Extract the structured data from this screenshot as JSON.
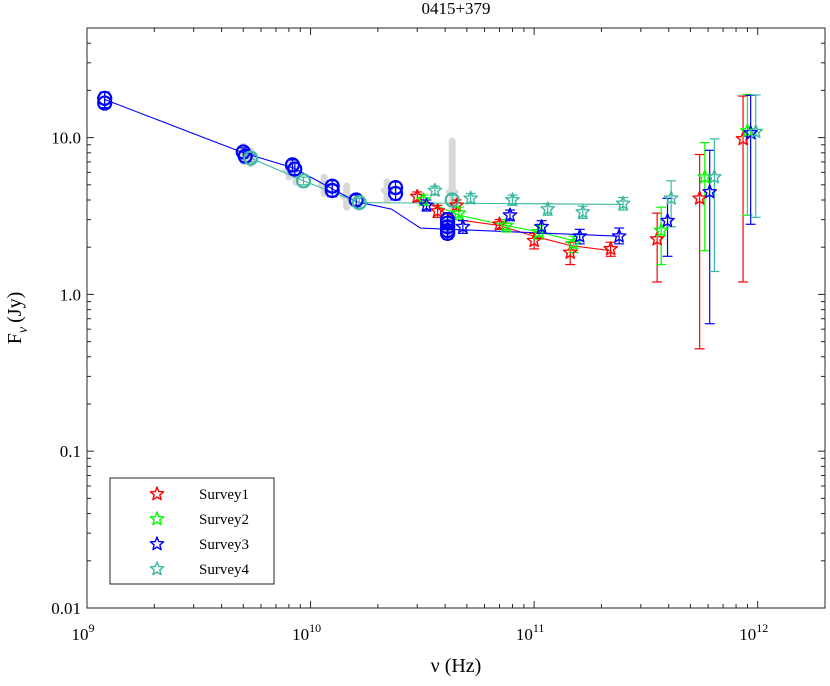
{
  "chart_data": {
    "type": "scatter",
    "title": "0415+379",
    "xlabel": "ν (Hz)",
    "ylabel": {
      "base": "F",
      "sub": "ν",
      "units": "(Jy)"
    },
    "xscale": "log",
    "yscale": "log",
    "xlim": [
      1000000000.0,
      2000000000000.0
    ],
    "ylim": [
      0.01,
      50
    ],
    "x_ticks": [
      {
        "value": 1000000000.0,
        "base": "10",
        "exp": "9"
      },
      {
        "value": 10000000000.0,
        "base": "10",
        "exp": "10"
      },
      {
        "value": 100000000000.0,
        "base": "10",
        "exp": "11"
      },
      {
        "value": 1000000000000.0,
        "base": "10",
        "exp": "12"
      }
    ],
    "y_ticks": [
      {
        "value": 0.01,
        "label": "0.01"
      },
      {
        "value": 0.1,
        "label": "0.1"
      },
      {
        "value": 1,
        "label": "1.0"
      },
      {
        "value": 10,
        "label": "10.0"
      }
    ],
    "legend_position": "bottom-left",
    "archival_gray": [
      {
        "x": 5000000000.0,
        "y": 7.8,
        "lo": 7.0,
        "hi": 8.8
      },
      {
        "x": 5400000000.0,
        "y": 7.5,
        "lo": 6.8,
        "hi": 8.2
      },
      {
        "x": 8000000000.0,
        "y": 6.2,
        "lo": 5.6,
        "hi": 6.9
      },
      {
        "x": 8600000000.0,
        "y": 5.8,
        "lo": 5.2,
        "hi": 6.4
      },
      {
        "x": 11500000000.0,
        "y": 5.0,
        "lo": 4.4,
        "hi": 5.6
      },
      {
        "x": 14500000000.0,
        "y": 4.2,
        "lo": 3.6,
        "hi": 4.9
      },
      {
        "x": 22000000000.0,
        "y": 4.6,
        "lo": 4.0,
        "hi": 5.2
      },
      {
        "x": 43000000000.0,
        "y": 4.5,
        "lo": 2.4,
        "hi": 9.5
      }
    ],
    "series": [
      {
        "name": "Survey1",
        "color": "#ff0000",
        "points": [
          {
            "x": 30000000000.0,
            "y": 4.2,
            "lo": 3.9,
            "hi": 4.5
          },
          {
            "x": 37000000000.0,
            "y": 3.4,
            "lo": 3.1,
            "hi": 3.7
          },
          {
            "x": 45000000000.0,
            "y": 3.7,
            "lo": 3.4,
            "hi": 4.0
          },
          {
            "x": 70000000000.0,
            "y": 2.8,
            "lo": 2.6,
            "hi": 3.0
          },
          {
            "x": 100000000000.0,
            "y": 2.2,
            "lo": 1.95,
            "hi": 2.45
          },
          {
            "x": 145000000000.0,
            "y": 1.85,
            "lo": 1.55,
            "hi": 2.15
          },
          {
            "x": 220000000000.0,
            "y": 1.95,
            "lo": 1.75,
            "hi": 2.15
          },
          {
            "x": 355000000000.0,
            "y": 2.25,
            "lo": 1.2,
            "hi": 3.3
          },
          {
            "x": 550000000000.0,
            "y": 4.1,
            "lo": 0.45,
            "hi": 7.8
          },
          {
            "x": 860000000000.0,
            "y": 9.8,
            "lo": 1.2,
            "hi": 18.4
          }
        ],
        "line": [
          {
            "x": 30000000000.0,
            "y": 4.2
          },
          {
            "x": 45000000000.0,
            "y": 3.0
          },
          {
            "x": 70000000000.0,
            "y": 2.75
          },
          {
            "x": 100000000000.0,
            "y": 2.35
          },
          {
            "x": 145000000000.0,
            "y": 2.05
          },
          {
            "x": 220000000000.0,
            "y": 1.9
          }
        ]
      },
      {
        "name": "Survey2",
        "color": "#00ff00",
        "points": [
          {
            "x": 32000000000.0,
            "y": 4.0,
            "lo": 3.7,
            "hi": 4.3
          },
          {
            "x": 46000000000.0,
            "y": 3.3,
            "lo": 3.0,
            "hi": 3.6
          },
          {
            "x": 75000000000.0,
            "y": 2.75,
            "lo": 2.5,
            "hi": 3.0
          },
          {
            "x": 105000000000.0,
            "y": 2.5,
            "lo": 2.25,
            "hi": 2.75
          },
          {
            "x": 150000000000.0,
            "y": 2.1,
            "lo": 1.85,
            "hi": 2.35
          },
          {
            "x": 370000000000.0,
            "y": 2.55,
            "lo": 1.55,
            "hi": 3.6
          },
          {
            "x": 580000000000.0,
            "y": 5.6,
            "lo": 1.9,
            "hi": 9.3
          },
          {
            "x": 900000000000.0,
            "y": 11.0,
            "lo": 3.2,
            "hi": 18.8
          }
        ],
        "line": [
          {
            "x": 32000000000.0,
            "y": 4.0
          },
          {
            "x": 46000000000.0,
            "y": 3.2
          },
          {
            "x": 75000000000.0,
            "y": 2.75
          },
          {
            "x": 105000000000.0,
            "y": 2.5
          },
          {
            "x": 150000000000.0,
            "y": 2.2
          }
        ]
      },
      {
        "name": "Survey3",
        "color": "#0000ff",
        "points": [
          {
            "x": 33000000000.0,
            "y": 3.7,
            "lo": 3.4,
            "hi": 4.0
          },
          {
            "x": 48000000000.0,
            "y": 2.7,
            "lo": 2.45,
            "hi": 2.95
          },
          {
            "x": 78000000000.0,
            "y": 3.2,
            "lo": 2.95,
            "hi": 3.45
          },
          {
            "x": 108000000000.0,
            "y": 2.7,
            "lo": 2.45,
            "hi": 2.95
          },
          {
            "x": 160000000000.0,
            "y": 2.35,
            "lo": 2.1,
            "hi": 2.6
          },
          {
            "x": 240000000000.0,
            "y": 2.35,
            "lo": 2.1,
            "hi": 2.65
          },
          {
            "x": 395000000000.0,
            "y": 2.95,
            "lo": 1.75,
            "hi": 4.1
          },
          {
            "x": 610000000000.0,
            "y": 4.5,
            "lo": 0.65,
            "hi": 8.3
          },
          {
            "x": 930000000000.0,
            "y": 10.7,
            "lo": 2.8,
            "hi": 18.6
          }
        ],
        "line": [
          {
            "x": 1200000000.0,
            "y": 17.5
          },
          {
            "x": 5000000000.0,
            "y": 8.0
          },
          {
            "x": 8400000000.0,
            "y": 6.4
          },
          {
            "x": 16000000000.0,
            "y": 3.9
          },
          {
            "x": 23000000000.0,
            "y": 3.5
          },
          {
            "x": 31000000000.0,
            "y": 2.65
          },
          {
            "x": 42000000000.0,
            "y": 2.6
          },
          {
            "x": 240000000000.0,
            "y": 2.35
          }
        ],
        "circles": [
          {
            "x": 1200000000.0,
            "y": 17.8,
            "lo": 15.5,
            "hi": 19.5
          },
          {
            "x": 1200000000.0,
            "y": 16.6,
            "lo": 15.5,
            "hi": 19.5
          },
          {
            "x": 5000000000.0,
            "y": 8.1,
            "lo": 7.4,
            "hi": 8.6
          },
          {
            "x": 5100000000.0,
            "y": 7.6,
            "lo": 7.0,
            "hi": 8.2
          },
          {
            "x": 8300000000.0,
            "y": 6.7,
            "lo": 6.1,
            "hi": 7.2
          },
          {
            "x": 8500000000.0,
            "y": 6.3,
            "lo": 5.8,
            "hi": 6.9
          },
          {
            "x": 12500000000.0,
            "y": 4.9,
            "lo": 4.5,
            "hi": 5.3
          },
          {
            "x": 12500000000.0,
            "y": 4.6,
            "lo": 4.2,
            "hi": 5.0
          },
          {
            "x": 16000000000.0,
            "y": 4.0,
            "lo": 3.7,
            "hi": 4.3
          },
          {
            "x": 24000000000.0,
            "y": 4.8,
            "lo": 4.4,
            "hi": 5.2
          },
          {
            "x": 24000000000.0,
            "y": 4.4,
            "lo": 4.0,
            "hi": 4.8
          },
          {
            "x": 41000000000.0,
            "y": 3.0,
            "lo": 2.8,
            "hi": 3.3
          },
          {
            "x": 41000000000.0,
            "y": 2.85,
            "lo": 2.6,
            "hi": 3.1
          },
          {
            "x": 41000000000.0,
            "y": 2.7,
            "lo": 2.5,
            "hi": 2.9
          },
          {
            "x": 41000000000.0,
            "y": 2.55,
            "lo": 2.35,
            "hi": 2.75
          },
          {
            "x": 41000000000.0,
            "y": 2.45,
            "lo": 2.25,
            "hi": 2.65
          }
        ]
      },
      {
        "name": "Survey4",
        "color": "#3cb9a0",
        "points": [
          {
            "x": 36000000000.0,
            "y": 4.6,
            "lo": 4.3,
            "hi": 4.9
          },
          {
            "x": 52000000000.0,
            "y": 4.1,
            "lo": 3.8,
            "hi": 4.4
          },
          {
            "x": 80000000000.0,
            "y": 4.0,
            "lo": 3.7,
            "hi": 4.3
          },
          {
            "x": 115000000000.0,
            "y": 3.5,
            "lo": 3.2,
            "hi": 3.8
          },
          {
            "x": 165000000000.0,
            "y": 3.35,
            "lo": 3.05,
            "hi": 3.65
          },
          {
            "x": 250000000000.0,
            "y": 3.8,
            "lo": 3.45,
            "hi": 4.15
          },
          {
            "x": 410000000000.0,
            "y": 4.1,
            "lo": 2.7,
            "hi": 5.3
          },
          {
            "x": 640000000000.0,
            "y": 5.6,
            "lo": 1.4,
            "hi": 9.8
          },
          {
            "x": 980000000000.0,
            "y": 10.9,
            "lo": 3.1,
            "hi": 18.7
          }
        ],
        "line": [
          {
            "x": 5400000000.0,
            "y": 7.4
          },
          {
            "x": 9300000000.0,
            "y": 5.3
          },
          {
            "x": 16500000000.0,
            "y": 3.85
          },
          {
            "x": 250000000000.0,
            "y": 3.75
          }
        ],
        "circles": [
          {
            "x": 5400000000.0,
            "y": 7.4,
            "lo": 7.0,
            "hi": 7.8
          },
          {
            "x": 9300000000.0,
            "y": 5.3,
            "lo": 5.0,
            "hi": 5.6
          },
          {
            "x": 16500000000.0,
            "y": 3.85,
            "lo": 3.6,
            "hi": 4.1
          },
          {
            "x": 43000000000.0,
            "y": 4.0,
            "lo": 3.7,
            "hi": 4.3
          }
        ]
      }
    ]
  }
}
